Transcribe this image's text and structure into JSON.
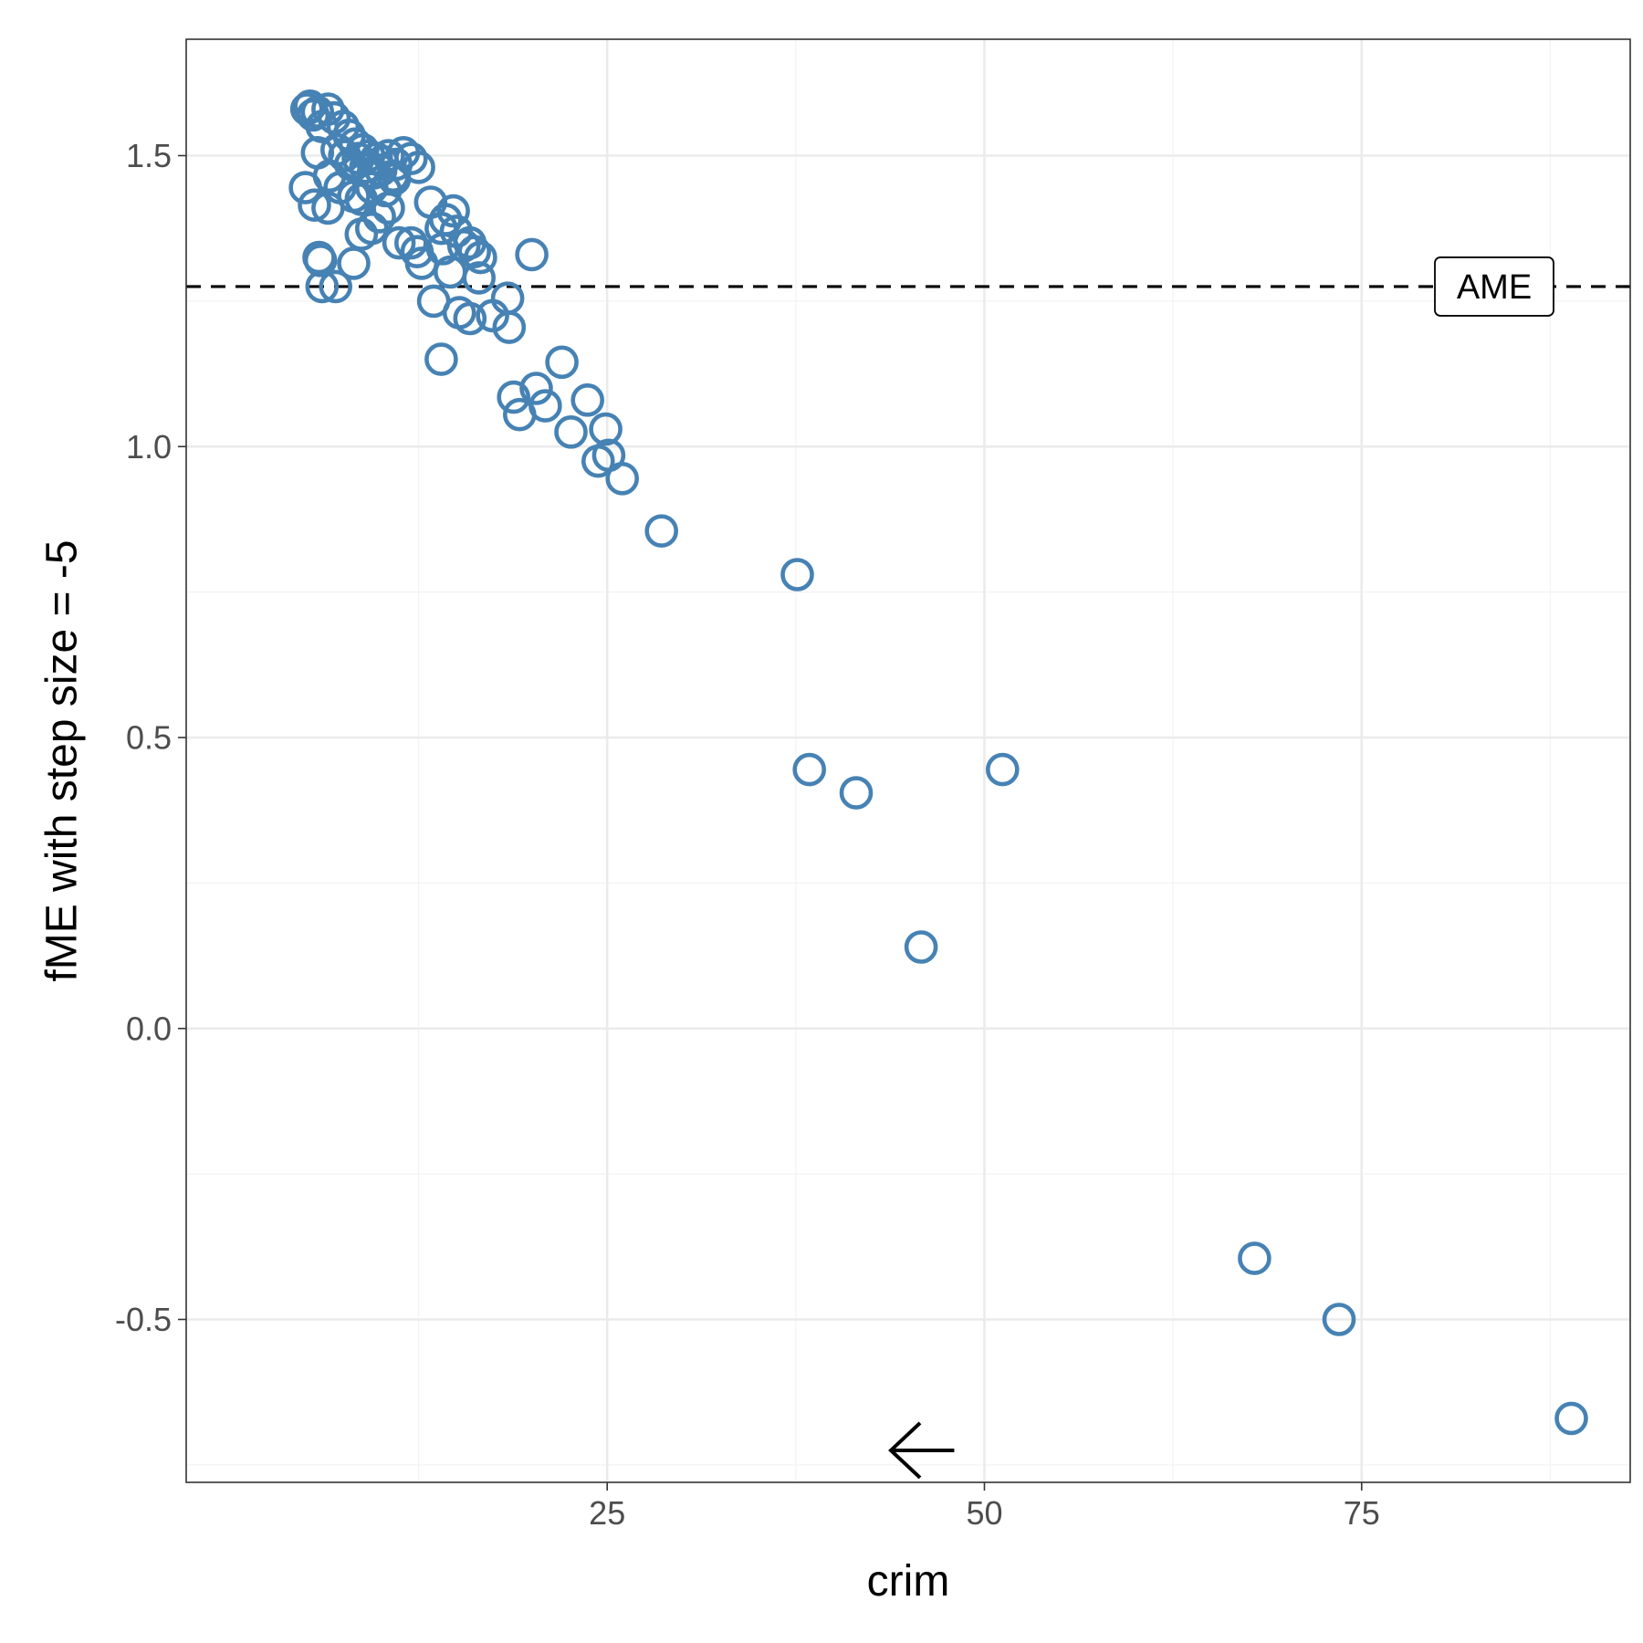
{
  "chart_data": {
    "type": "scatter",
    "xlabel": "crim",
    "ylabel": "fME with step size = -5",
    "xlim": [
      -2.9,
      92.8
    ],
    "ylim": [
      -0.78,
      1.7
    ],
    "x_ticks": [
      25,
      50,
      75
    ],
    "x_minor_ticks": [
      12.5,
      37.5,
      62.5,
      87.5
    ],
    "y_ticks": [
      -0.5,
      0.0,
      0.5,
      1.0,
      1.5
    ],
    "y_tick_labels": [
      "-0.5",
      "0.0",
      "0.5",
      "1.0",
      "1.5"
    ],
    "y_minor_ticks": [
      -0.75,
      -0.25,
      0.25,
      0.75,
      1.25
    ],
    "grid": true,
    "point_color": "#4682b4",
    "ame": {
      "value": 1.275,
      "label": "AME"
    },
    "arrow": {
      "direction": "left",
      "x_from": 48.0,
      "x_to": 43.8,
      "y": -0.725
    },
    "points": [
      [
        5.1,
        1.58
      ],
      [
        5.3,
        1.585
      ],
      [
        5.5,
        1.57
      ],
      [
        5.8,
        1.575
      ],
      [
        6.5,
        1.58
      ],
      [
        6.9,
        1.565
      ],
      [
        7.5,
        1.55
      ],
      [
        7.9,
        1.535
      ],
      [
        8.3,
        1.52
      ],
      [
        8.8,
        1.51
      ],
      [
        9.2,
        1.5
      ],
      [
        9.7,
        1.495
      ],
      [
        10.1,
        1.49
      ],
      [
        10.5,
        1.5
      ],
      [
        11.0,
        1.485
      ],
      [
        11.5,
        1.505
      ],
      [
        12.0,
        1.495
      ],
      [
        6.1,
        1.55
      ],
      [
        7.1,
        1.51
      ],
      [
        7.6,
        1.5
      ],
      [
        8.0,
        1.485
      ],
      [
        8.5,
        1.495
      ],
      [
        9.0,
        1.48
      ],
      [
        9.5,
        1.47
      ],
      [
        10.0,
        1.475
      ],
      [
        10.8,
        1.465
      ],
      [
        12.5,
        1.48
      ],
      [
        5.8,
        1.505
      ],
      [
        6.6,
        1.465
      ],
      [
        7.3,
        1.445
      ],
      [
        8.2,
        1.43
      ],
      [
        8.7,
        1.425
      ],
      [
        9.4,
        1.445
      ],
      [
        10.3,
        1.44
      ],
      [
        10.9,
        1.46
      ],
      [
        5.0,
        1.445
      ],
      [
        5.6,
        1.415
      ],
      [
        6.5,
        1.41
      ],
      [
        8.7,
        1.365
      ],
      [
        9.4,
        1.375
      ],
      [
        9.9,
        1.395
      ],
      [
        10.5,
        1.41
      ],
      [
        11.2,
        1.35
      ],
      [
        12.0,
        1.35
      ],
      [
        12.4,
        1.335
      ],
      [
        12.7,
        1.315
      ],
      [
        13.3,
        1.42
      ],
      [
        14.0,
        1.375
      ],
      [
        14.3,
        1.39
      ],
      [
        14.8,
        1.405
      ],
      [
        15.0,
        1.37
      ],
      [
        15.5,
        1.345
      ],
      [
        15.9,
        1.35
      ],
      [
        16.2,
        1.335
      ],
      [
        14.1,
        1.34
      ],
      [
        14.6,
        1.3
      ],
      [
        16.6,
        1.325
      ],
      [
        16.5,
        1.29
      ],
      [
        5.9,
        1.325
      ],
      [
        6.0,
        1.32
      ],
      [
        8.2,
        1.315
      ],
      [
        6.1,
        1.275
      ],
      [
        7.0,
        1.275
      ],
      [
        13.5,
        1.25
      ],
      [
        15.2,
        1.23
      ],
      [
        15.9,
        1.22
      ],
      [
        17.4,
        1.225
      ],
      [
        18.4,
        1.255
      ],
      [
        18.5,
        1.205
      ],
      [
        20.0,
        1.33
      ],
      [
        14.0,
        1.15
      ],
      [
        18.8,
        1.085
      ],
      [
        19.2,
        1.055
      ],
      [
        20.3,
        1.1
      ],
      [
        20.9,
        1.07
      ],
      [
        22.0,
        1.145
      ],
      [
        22.6,
        1.025
      ],
      [
        23.7,
        1.08
      ],
      [
        24.4,
        0.975
      ],
      [
        24.9,
        1.03
      ],
      [
        25.1,
        0.985
      ],
      [
        26.0,
        0.945
      ],
      [
        28.6,
        0.855
      ],
      [
        37.6,
        0.78
      ],
      [
        38.4,
        0.445
      ],
      [
        41.5,
        0.405
      ],
      [
        45.8,
        0.14
      ],
      [
        51.2,
        0.445
      ],
      [
        67.9,
        -0.395
      ],
      [
        73.5,
        -0.5
      ],
      [
        88.9,
        -0.67
      ]
    ]
  }
}
